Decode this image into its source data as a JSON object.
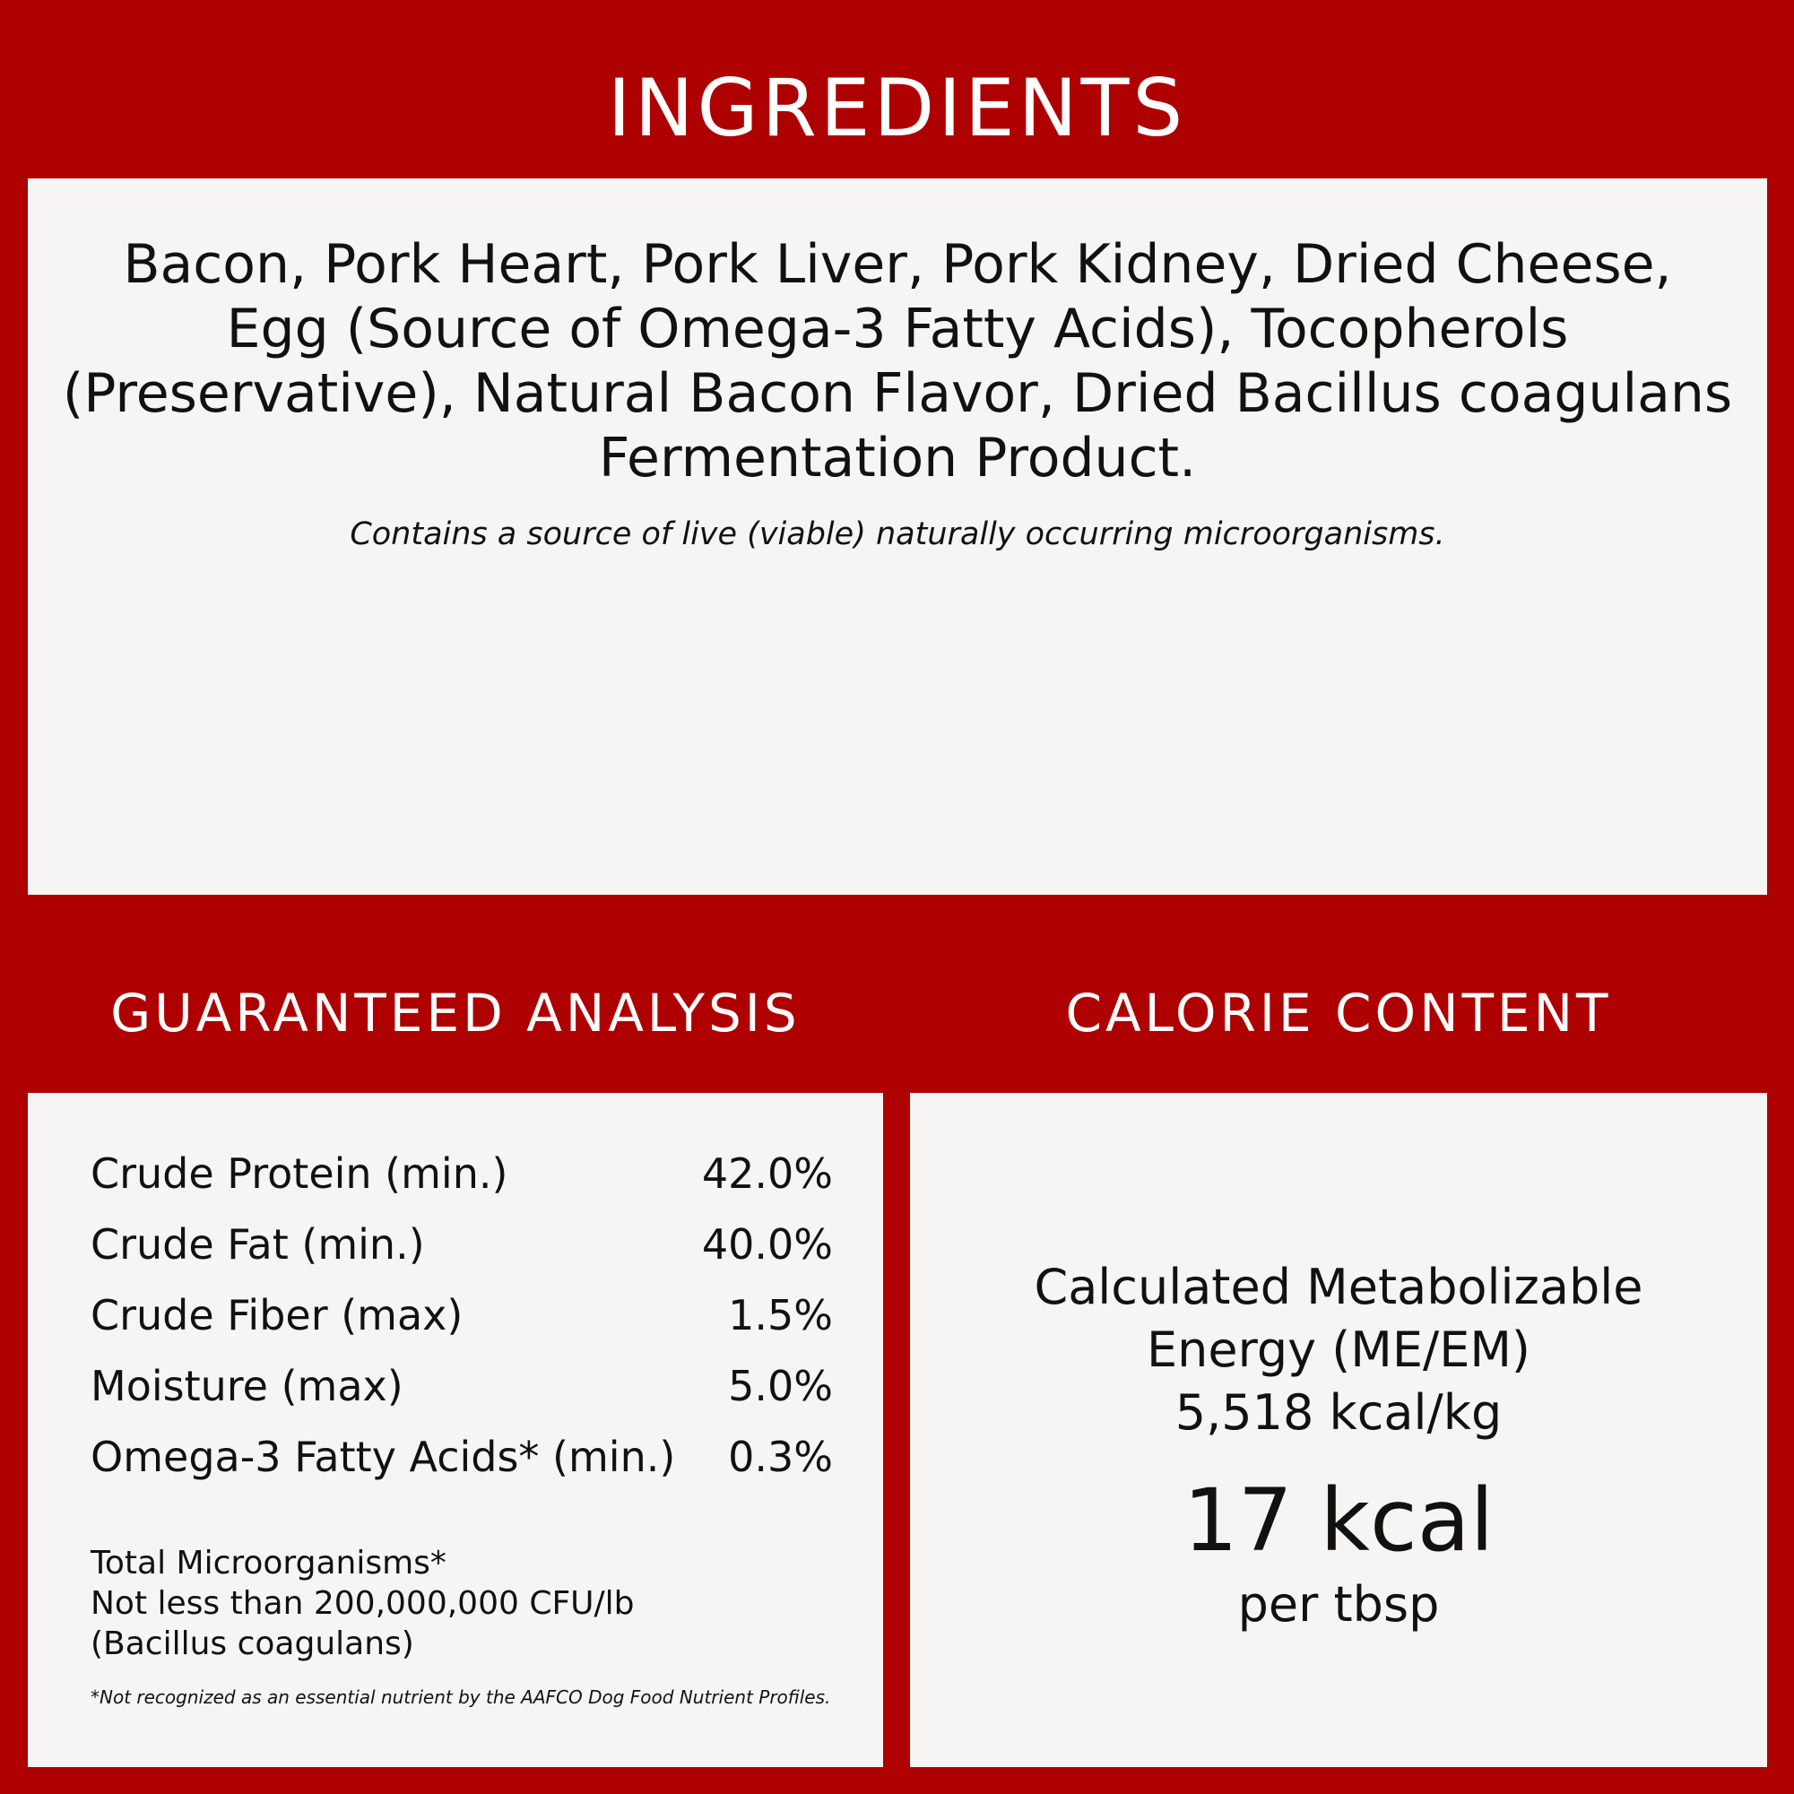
{
  "colors": {
    "brand_red": "#ae0000",
    "panel_bg": "#f6f5f3",
    "text": "#111111"
  },
  "ingredients": {
    "title": "INGREDIENTS",
    "lines": [
      "Bacon, Pork Heart, Pork Liver, Pork Kidney, Dried Cheese,",
      "Egg (Source of Omega-3 Fatty Acids), Tocopherols",
      "(Preservative), Natural Bacon Flavor, Dried Bacillus coagulans",
      "Fermentation Product."
    ],
    "note": "Contains a source of live (viable) naturally occurring microorganisms."
  },
  "analysis": {
    "title": "GUARANTEED ANALYSIS",
    "rows": [
      {
        "label": "Crude Protein (min.)",
        "value": "42.0%"
      },
      {
        "label": "Crude Fat (min.)",
        "value": "40.0%"
      },
      {
        "label": "Crude Fiber (max)",
        "value": "1.5%"
      },
      {
        "label": "Moisture (max)",
        "value": "5.0%"
      },
      {
        "label": "Omega-3 Fatty Acids* (min.)",
        "value": "0.3%"
      }
    ],
    "micro_lines": [
      "Total Microorganisms*",
      "Not less than 200,000,000 CFU/lb",
      "(Bacillus coagulans)"
    ],
    "footnote": "*Not recognized as an essential nutrient by the AAFCO Dog Food Nutrient Profiles."
  },
  "calories": {
    "title": "CALORIE CONTENT",
    "lines": [
      "Calculated Metabolizable",
      "Energy (ME/EM)",
      "5,518 kcal/kg"
    ],
    "big": "17 kcal",
    "unit": "per tbsp"
  }
}
